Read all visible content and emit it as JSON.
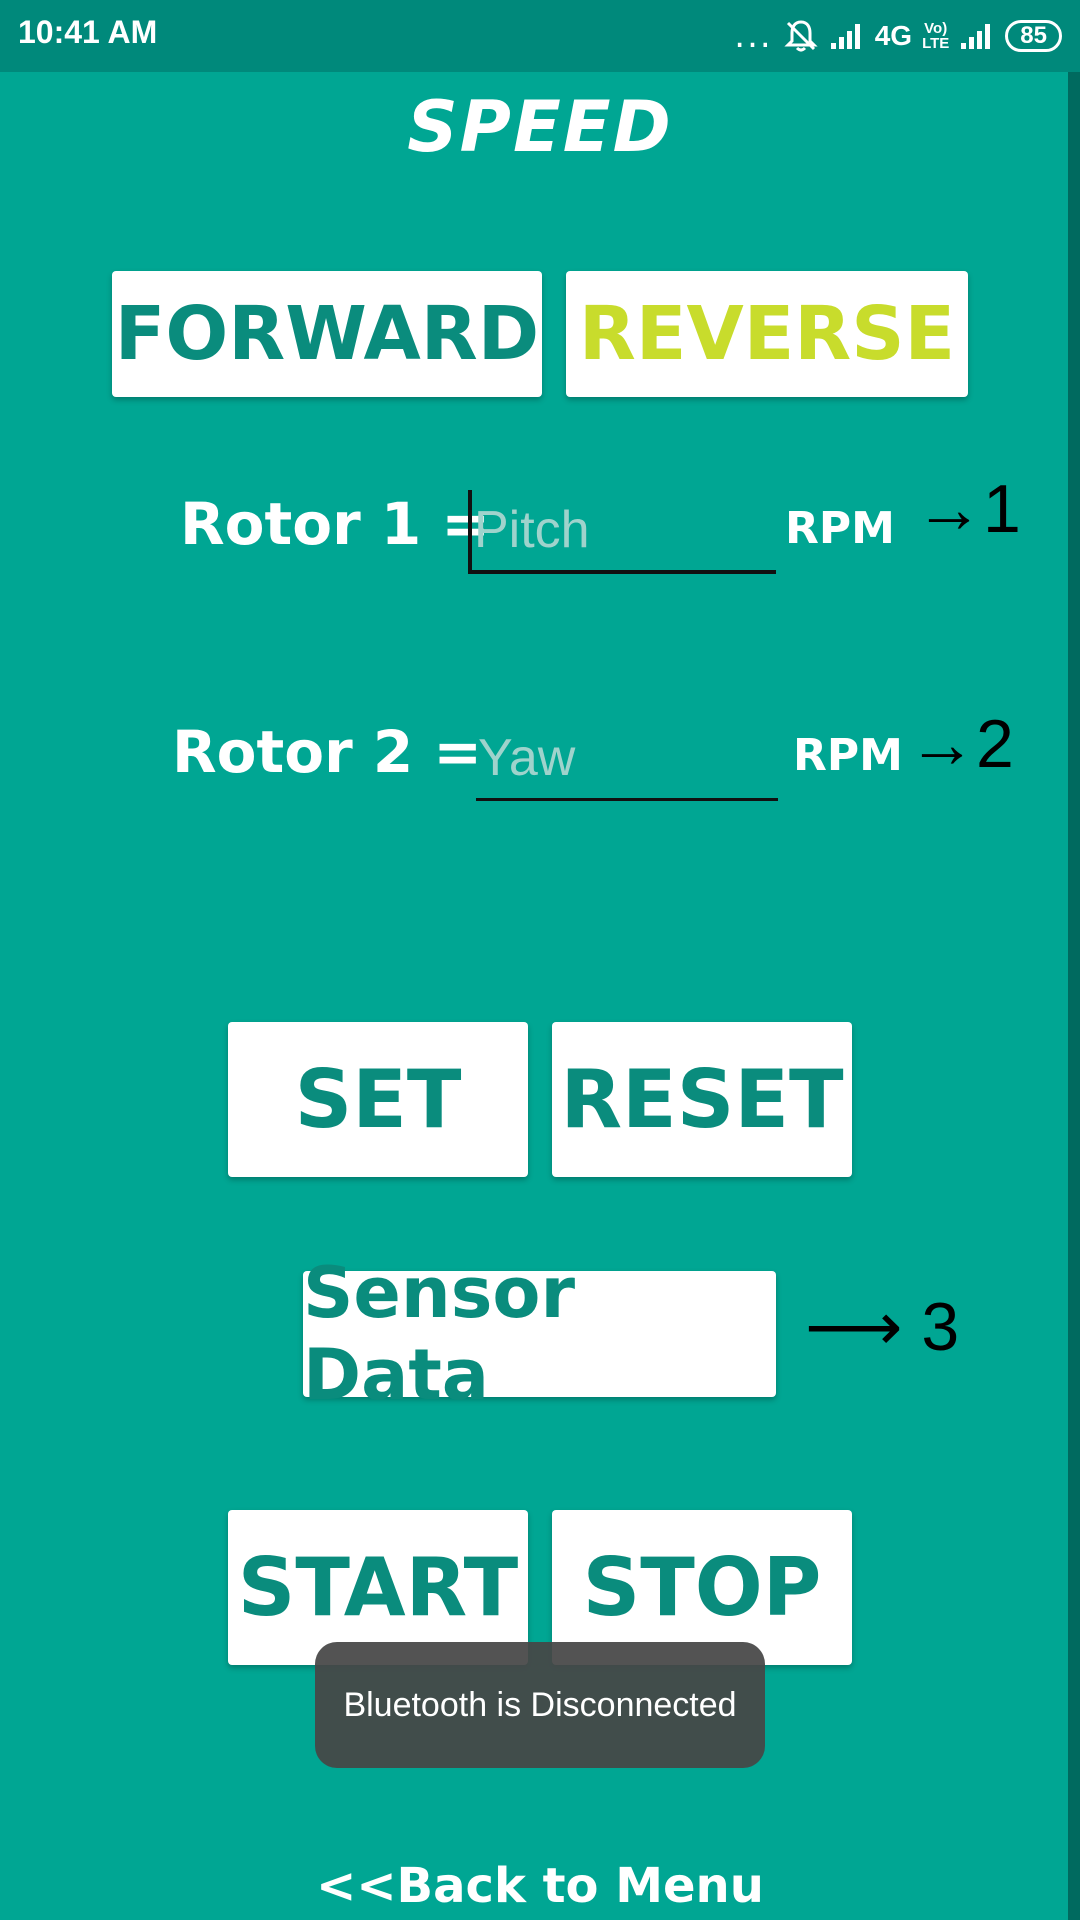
{
  "status_bar": {
    "time": "10:41 AM",
    "dots": "...",
    "network": "4G",
    "volte_top": "Vo)",
    "volte_bottom": "LTE",
    "battery": "85"
  },
  "title": "SPEED",
  "direction": {
    "forward_label": "FORWARD",
    "reverse_label": "REVERSE"
  },
  "rotor1": {
    "label": "Rotor 1 =",
    "placeholder": "Pitch",
    "unit": "RPM",
    "annotation": "→1"
  },
  "rotor2": {
    "label": "Rotor 2 =",
    "placeholder": "Yaw",
    "unit": "RPM",
    "annotation": "→2"
  },
  "actions": {
    "set_label": "SET",
    "reset_label": "RESET",
    "sensor_label": "Sensor Data",
    "sensor_annotation": "⟶ 3",
    "start_label": "START",
    "stop_label": "STOP"
  },
  "toast": "Bluetooth is Disconnected",
  "back_link": "<<Back to Menu",
  "colors": {
    "background": "#00A693",
    "status_bar": "#00897B",
    "button_text": "#0A8C7D",
    "reverse_text": "#C8DC2C"
  }
}
